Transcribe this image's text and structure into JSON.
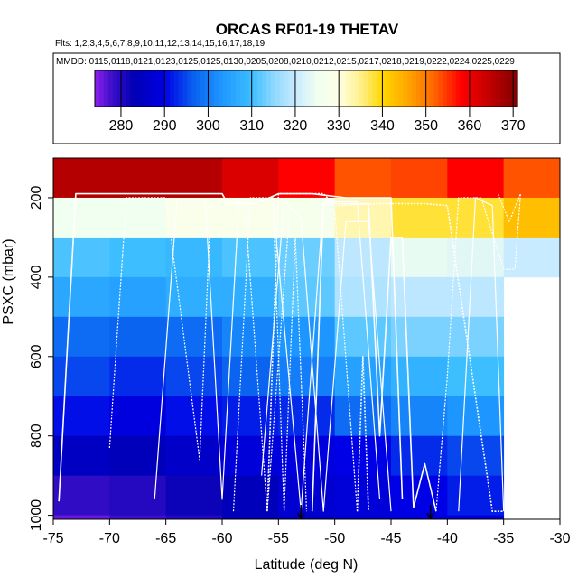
{
  "chart_data": {
    "type": "heatmap",
    "title": "ORCAS RF01-19 THETAV",
    "flights_line": "Flts: 1,2,3,4,5,6,7,8,9,10,11,12,13,14,15,16,17,18,19",
    "dates_line": "MMDD: 0115,0118,0121,0123,0125,0125,0130,0205,0208,0210,0212,0215,0217,0218,0219,0222,0224,0225,0229",
    "xlabel": "Latitude (deg N)",
    "ylabel": "PSXC (mbar)",
    "xlim": [
      -75,
      -30
    ],
    "ylim": [
      1010,
      100
    ],
    "y_reversed": true,
    "x_ticks": [
      -75,
      -70,
      -65,
      -60,
      -55,
      -50,
      -45,
      -40,
      -35,
      -30
    ],
    "y_ticks": [
      200,
      400,
      600,
      800,
      1000
    ],
    "colorbar": {
      "range": [
        274,
        371
      ],
      "ticks": [
        280,
        290,
        300,
        310,
        320,
        330,
        340,
        350,
        360,
        370
      ],
      "stops": [
        {
          "v": 274,
          "color": "#8f20ef"
        },
        {
          "v": 278,
          "color": "#3c0fc8"
        },
        {
          "v": 283,
          "color": "#0000b4"
        },
        {
          "v": 290,
          "color": "#0000e6"
        },
        {
          "v": 297,
          "color": "#0a64f0"
        },
        {
          "v": 303,
          "color": "#1e96ff"
        },
        {
          "v": 310,
          "color": "#3cbeff"
        },
        {
          "v": 315,
          "color": "#8cd7ff"
        },
        {
          "v": 320,
          "color": "#c8ebff"
        },
        {
          "v": 325,
          "color": "#f0fff0"
        },
        {
          "v": 330,
          "color": "#ffffe6"
        },
        {
          "v": 335,
          "color": "#fff08c"
        },
        {
          "v": 340,
          "color": "#ffd700"
        },
        {
          "v": 346,
          "color": "#ffa500"
        },
        {
          "v": 352,
          "color": "#ff6400"
        },
        {
          "v": 358,
          "color": "#ff0000"
        },
        {
          "v": 364,
          "color": "#c80000"
        },
        {
          "v": 370,
          "color": "#8b0000"
        }
      ]
    },
    "x_bins": [
      -75,
      -70,
      -65,
      -60,
      -55,
      -50,
      -45,
      -40,
      -35,
      -30
    ],
    "y_bins": [
      100,
      200,
      300,
      400,
      500,
      600,
      700,
      800,
      900,
      1000,
      1010
    ],
    "cell_values": [
      [
        366,
        366,
        366,
        362,
        358,
        353,
        354,
        358,
        353
      ],
      [
        325,
        325,
        328,
        328,
        327,
        333,
        338,
        338,
        343
      ],
      [
        311,
        310,
        309,
        311,
        313,
        319,
        324,
        323,
        320
      ],
      [
        306,
        305,
        307,
        307,
        312,
        318,
        319,
        319,
        null
      ],
      [
        298,
        297,
        298,
        301,
        303,
        312,
        314,
        314,
        null
      ],
      [
        295,
        293,
        295,
        297,
        300,
        305,
        308,
        310,
        null
      ],
      [
        291,
        289,
        291,
        292,
        293,
        298,
        301,
        303,
        null
      ],
      [
        285,
        284,
        286,
        288,
        289,
        290,
        293,
        295,
        null
      ],
      [
        279,
        280,
        282,
        284,
        287,
        288,
        290,
        292,
        null
      ],
      [
        276,
        278,
        280,
        283,
        285,
        287,
        288,
        289,
        null
      ]
    ],
    "cell_values_note": "",
    "arrows": [
      {
        "lat": -53,
        "p": 1010
      },
      {
        "lat": -41.5,
        "p": 1010
      }
    ],
    "flight_segments": [
      {
        "name": "",
        "points": [
          [
            -74.5,
            965
          ],
          [
            -73,
            190
          ],
          [
            -60,
            190
          ],
          [
            -59.5,
            215
          ],
          [
            -57,
            215
          ],
          [
            -55,
            190
          ],
          [
            -52,
            190
          ],
          [
            -49,
            200
          ],
          [
            -45,
            200
          ],
          [
            -44,
            960
          ]
        ]
      },
      {
        "name": "",
        "points": [
          [
            -70,
            830
          ],
          [
            -68.5,
            200
          ],
          [
            -65,
            200
          ],
          [
            -62,
            860
          ],
          [
            -61,
            220
          ],
          [
            -58,
            210
          ],
          [
            -56,
            990
          ],
          [
            -54,
            230
          ],
          [
            -50,
            230
          ],
          [
            -48,
            990
          ]
        ]
      },
      {
        "name": "",
        "points": [
          [
            -66,
            960
          ],
          [
            -64,
            205
          ],
          [
            -61.5,
            205
          ],
          [
            -60,
            960
          ],
          [
            -58.5,
            205
          ],
          [
            -55.5,
            205
          ],
          [
            -53,
            990
          ],
          [
            -51,
            210
          ],
          [
            -48,
            210
          ],
          [
            -46,
            960
          ]
        ]
      },
      {
        "name": "",
        "points": [
          [
            -56,
            990
          ],
          [
            -55,
            190
          ],
          [
            -51,
            190
          ],
          [
            -50,
            220
          ],
          [
            -46,
            215
          ],
          [
            -42,
            215
          ],
          [
            -40,
            220
          ],
          [
            -36,
            990
          ],
          [
            -35,
            990
          ]
        ]
      },
      {
        "name": "",
        "points": [
          [
            -56.5,
            900
          ],
          [
            -54.5,
            210
          ],
          [
            -53,
            250
          ],
          [
            -51,
            990
          ],
          [
            -49,
            260
          ],
          [
            -47,
            260
          ],
          [
            -45,
            990
          ]
        ]
      },
      {
        "name": "",
        "points": [
          [
            -41,
            990
          ],
          [
            -40,
            650
          ],
          [
            -39,
            200
          ],
          [
            -37,
            200
          ],
          [
            -35,
            380
          ],
          [
            -34,
            380
          ],
          [
            -33.5,
            190
          ],
          [
            -34.5,
            260
          ],
          [
            -35.5,
            190
          ]
        ]
      },
      {
        "name": "",
        "points": [
          [
            -52,
            990
          ],
          [
            -51,
            215
          ],
          [
            -47,
            215
          ],
          [
            -46,
            800
          ],
          [
            -45,
            300
          ],
          [
            -44,
            300
          ],
          [
            -43,
            980
          ],
          [
            -42,
            870
          ],
          [
            -41,
            990
          ]
        ]
      },
      {
        "name": "",
        "points": [
          [
            -59,
            990
          ],
          [
            -57.5,
            200
          ],
          [
            -55.5,
            200
          ],
          [
            -54.5,
            990
          ],
          [
            -53.5,
            300
          ],
          [
            -52.5,
            990
          ]
        ]
      },
      {
        "name": "",
        "points": [
          [
            -39,
            990
          ],
          [
            -37.5,
            200
          ],
          [
            -36,
            220
          ],
          [
            -35,
            990
          ]
        ]
      },
      {
        "name": "",
        "points": [
          [
            -48,
            990
          ],
          [
            -47.5,
            600
          ],
          [
            -47,
            990
          ]
        ]
      }
    ]
  }
}
